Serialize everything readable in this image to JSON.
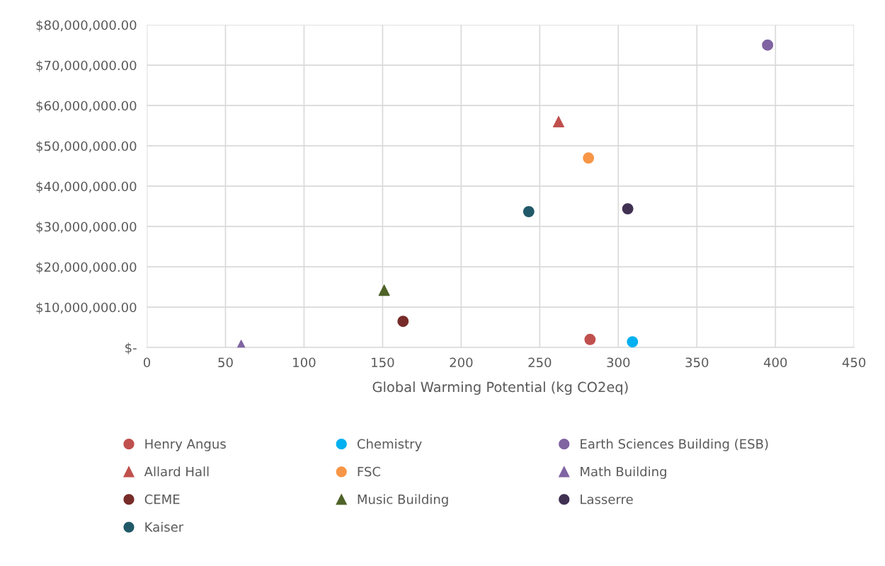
{
  "chart_data": {
    "type": "scatter",
    "xlabel": "Global Warming Potential (kg CO2eq)",
    "xlim": [
      0,
      450
    ],
    "xticks": [
      0,
      50,
      100,
      150,
      200,
      250,
      300,
      350,
      400,
      450
    ],
    "ylim": [
      0,
      80000000
    ],
    "yticks": [
      {
        "value": 0,
        "label": "$-"
      },
      {
        "value": 10000000,
        "label": "$10,000,000.00"
      },
      {
        "value": 20000000,
        "label": "$20,000,000.00"
      },
      {
        "value": 30000000,
        "label": "$30,000,000.00"
      },
      {
        "value": 40000000,
        "label": "$40,000,000.00"
      },
      {
        "value": 50000000,
        "label": "$50,000,000.00"
      },
      {
        "value": 60000000,
        "label": "$60,000,000.00"
      },
      {
        "value": 70000000,
        "label": "$70,000,000.00"
      },
      {
        "value": 80000000,
        "label": "$80,000,000.00"
      }
    ],
    "grid": true,
    "legend": "bottom",
    "series": [
      {
        "name": "Henry Angus",
        "color": "#c0504d",
        "marker": "circle",
        "x": [
          282
        ],
        "values": [
          2000000
        ]
      },
      {
        "name": "Chemistry",
        "color": "#00b0f0",
        "marker": "circle",
        "x": [
          309
        ],
        "values": [
          1400000
        ]
      },
      {
        "name": "Earth Sciences Building (ESB)",
        "color": "#8064a2",
        "marker": "circle",
        "x": [
          395
        ],
        "values": [
          75000000
        ]
      },
      {
        "name": "Allard Hall",
        "color": "#c0504d",
        "marker": "triangle",
        "x": [
          262
        ],
        "values": [
          56000000
        ]
      },
      {
        "name": "FSC",
        "color": "#f79646",
        "marker": "circle",
        "x": [
          281
        ],
        "values": [
          47000000
        ]
      },
      {
        "name": "Math Building",
        "color": "#8064a2",
        "marker": "triangle",
        "x": [
          60
        ],
        "values": [
          500000
        ]
      },
      {
        "name": "CEME",
        "color": "#772c2a",
        "marker": "circle",
        "x": [
          163
        ],
        "values": [
          6500000
        ]
      },
      {
        "name": "Music Building",
        "color": "#4f6228",
        "marker": "triangle",
        "x": [
          151
        ],
        "values": [
          14200000
        ]
      },
      {
        "name": "Lasserre",
        "color": "#403152",
        "marker": "circle",
        "x": [
          306
        ],
        "values": [
          34400000
        ]
      },
      {
        "name": "Kaiser",
        "color": "#215968",
        "marker": "circle",
        "x": [
          243
        ],
        "values": [
          33700000
        ]
      }
    ]
  }
}
